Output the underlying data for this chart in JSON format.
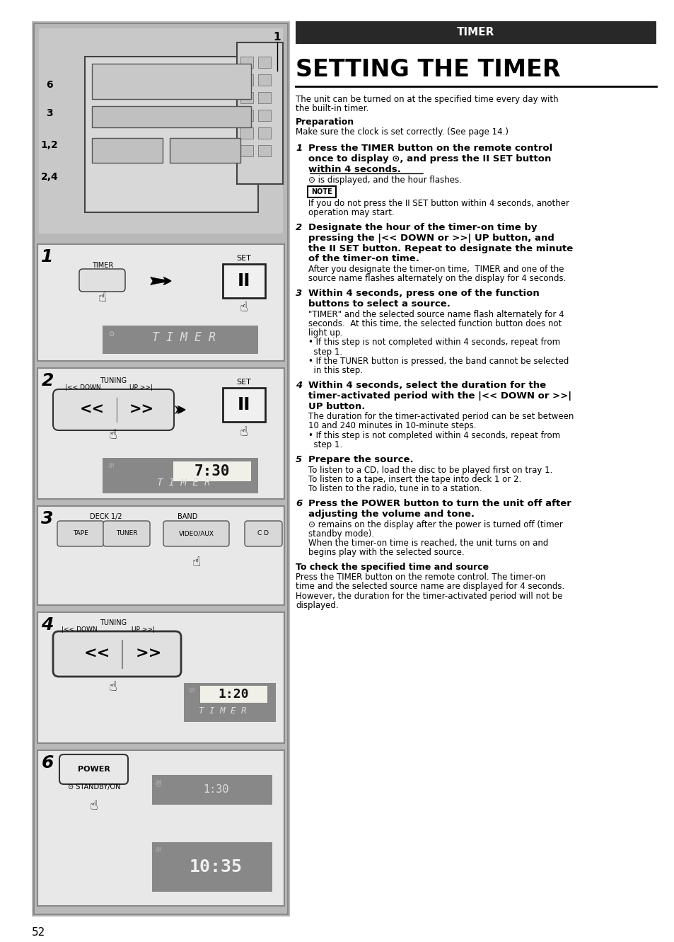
{
  "page_bg": "#ffffff",
  "left_panel_bg": "#b8b8b8",
  "header_bg": "#1a1a1a",
  "header_text": "TIMER",
  "title": "SETTING THE TIMER",
  "intro_text": "The unit can be turned on at the specified time every day with\nthe built-in timer.",
  "prep_heading": "Preparation",
  "prep_text": "Make sure the clock is set correctly. (See page 14.)",
  "step1_bold1": "Press the TIMER button on the remote control",
  "step1_bold2": "once to display ⊙, and press the II SET button",
  "step1_bold3": "within 4 seconds.",
  "step1_norm": "⊙ is displayed, and the hour flashes.",
  "step1_note": "If you do not press the II SET button within 4 seconds, another\noperation may start.",
  "step2_bold1": "Designate the hour of the timer-on time by",
  "step2_bold2": "pressing the |<< DOWN or >>| UP button, and",
  "step2_bold3": "the II SET button. Repeat to designate the minute",
  "step2_bold4": "of the timer-on time.",
  "step2_norm1": "After you designate the timer-on time,  TIMER and one of the",
  "step2_norm2": "source name flashes alternately on the display for 4 seconds.",
  "step3_bold1": "Within 4 seconds, press one of the function",
  "step3_bold2": "buttons to select a source.",
  "step3_norm1": "\"TIMER\" and the selected source name flash alternately for 4",
  "step3_norm2": "seconds.  At this time, the selected function button does not",
  "step3_norm3": "light up.",
  "step3_norm4": "• If this step is not completed within 4 seconds, repeat from",
  "step3_norm5": "  step 1.",
  "step3_norm6": "• If the TUNER button is pressed, the band cannot be selected",
  "step3_norm7": "  in this step.",
  "step4_bold1": "Within 4 seconds, select the duration for the",
  "step4_bold2": "timer-activated period with the |<< DOWN or >>|",
  "step4_bold3": "UP button.",
  "step4_norm1": "The duration for the timer-activated period can be set between",
  "step4_norm2": "10 and 240 minutes in 10-minute steps.",
  "step4_norm3": "• If this step is not completed within 4 seconds, repeat from",
  "step4_norm4": "  step 1.",
  "step5_bold": "Prepare the source.",
  "step5_norm1": "To listen to a CD, load the disc to be played first on tray 1.",
  "step5_norm2": "To listen to a tape, insert the tape into deck 1 or 2.",
  "step5_norm3": "To listen to the radio, tune in to a station.",
  "step6_bold1": "Press the POWER button to turn the unit off after",
  "step6_bold2": "adjusting the volume and tone.",
  "step6_norm1": "⊙ remains on the display after the power is turned off (timer",
  "step6_norm2": "standby mode).",
  "step6_norm3": "When the timer-on time is reached, the unit turns on and",
  "step6_norm4": "begins play with the selected source.",
  "check_heading": "To check the specified time and source",
  "check_norm1": "Press the TIMER button on the remote control. The timer-on",
  "check_norm2": "time and the selected source name are displayed for 4 seconds.",
  "check_norm3": "However, the duration for the timer-activated period will not be",
  "check_norm4": "displayed.",
  "page_number": "52"
}
